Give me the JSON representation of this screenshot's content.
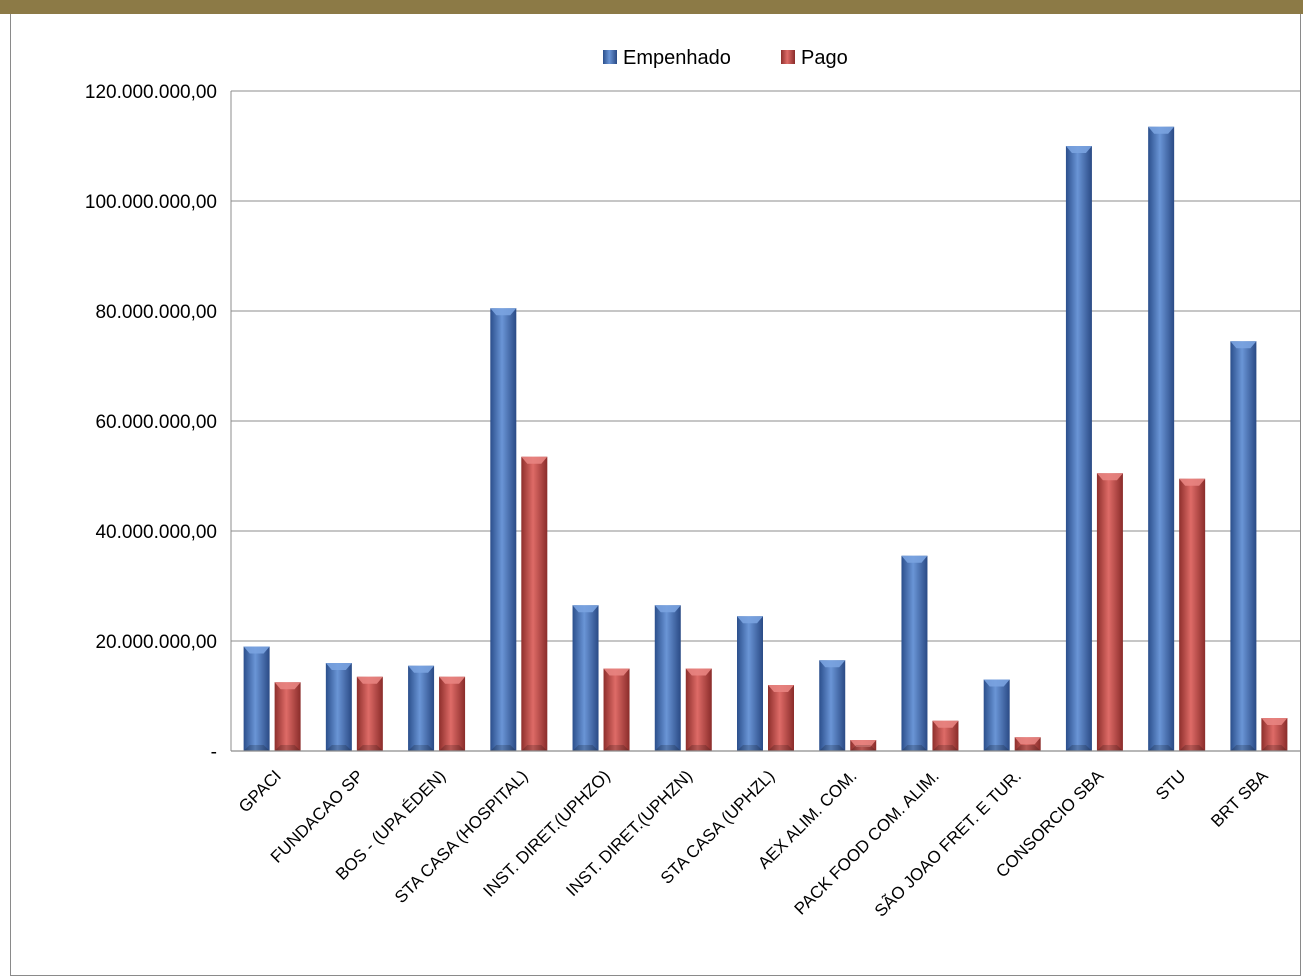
{
  "colors": {
    "header_bar": "#8c7a46",
    "empenhado": "#4a78c0",
    "pago": "#c0504d",
    "grid": "#8c8c8c"
  },
  "chart_data": {
    "type": "bar",
    "title": "",
    "xlabel": "",
    "ylabel": "",
    "ylim": [
      0,
      120000000
    ],
    "yticks": [
      0,
      20000000,
      40000000,
      60000000,
      80000000,
      100000000,
      120000000
    ],
    "ytick_labels": [
      "-",
      "20.000.000,00",
      "40.000.000,00",
      "60.000.000,00",
      "80.000.000,00",
      "100.000.000,00",
      "120.000.000,00"
    ],
    "grid": true,
    "legend_position": "top-center",
    "categories": [
      "GPACI",
      "FUNDACAO SP",
      "BOS - (UPA ÉDEN)",
      "STA CASA (HOSPITAL)",
      "INST. DIRET.(UPHZO)",
      "INST. DIRET.(UPHZN)",
      "STA CASA (UPHZL)",
      "AEX ALIM. COM.",
      "PACK FOOD COM. ALIM.",
      "SÃO JOAO FRET. E TUR.",
      "CONSORCIO SBA",
      "STU",
      "BRT SBA"
    ],
    "series": [
      {
        "name": "Empenhado",
        "values": [
          19000000,
          16000000,
          15500000,
          80500000,
          26500000,
          26500000,
          24500000,
          16500000,
          35500000,
          13000000,
          110000000,
          113500000,
          74500000
        ]
      },
      {
        "name": "Pago",
        "values": [
          12500000,
          13500000,
          13500000,
          53500000,
          15000000,
          15000000,
          12000000,
          2000000,
          5500000,
          2500000,
          50500000,
          49500000,
          6000000
        ]
      }
    ]
  }
}
